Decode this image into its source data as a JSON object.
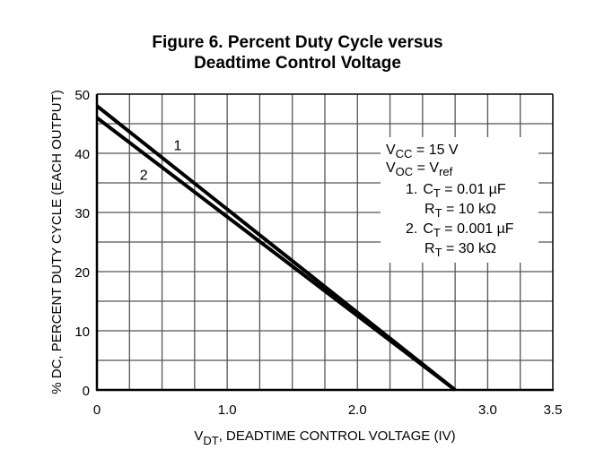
{
  "chart_data": {
    "type": "line",
    "title": [
      "Figure 6. Percent Duty Cycle versus",
      "Deadtime Control Voltage"
    ],
    "xlabel": {
      "main": "V",
      "sub": "DT",
      "rest": ", DEADTIME CONTROL VOLTAGE (IV)"
    },
    "ylabel": "% DC, PERCENT DUTY CYCLE (EACH OUTPUT)",
    "xlim": [
      0,
      3.5
    ],
    "ylim": [
      0,
      50
    ],
    "x_ticks": [
      {
        "v": 0,
        "label": "0"
      },
      {
        "v": 1.0,
        "label": "1.0"
      },
      {
        "v": 2.0,
        "label": "2.0"
      },
      {
        "v": 3.0,
        "label": "3.0"
      },
      {
        "v": 3.5,
        "label": "3.5"
      }
    ],
    "y_ticks": [
      {
        "v": 0,
        "label": "0"
      },
      {
        "v": 10,
        "label": "10"
      },
      {
        "v": 20,
        "label": "20"
      },
      {
        "v": 30,
        "label": "30"
      },
      {
        "v": 40,
        "label": "40"
      },
      {
        "v": 50,
        "label": "50"
      }
    ],
    "x_grid_step": 0.25,
    "y_grid_step": 5,
    "grid": true,
    "series": [
      {
        "name": "1",
        "label": "1",
        "x": [
          0,
          2.75
        ],
        "y": [
          48,
          0
        ],
        "label_at": [
          0.62,
          40.5
        ]
      },
      {
        "name": "2",
        "label": "2",
        "x": [
          0,
          2.75
        ],
        "y": [
          46,
          0
        ],
        "label_at": [
          0.36,
          35.5
        ]
      }
    ],
    "legend_position": "top-right",
    "annotation": {
      "vcc": {
        "main": "V",
        "sub": "CC",
        "rest": " = 15 V"
      },
      "voc": {
        "main": "V",
        "sub": "OC",
        "eq": " = V",
        "sub2": "ref"
      },
      "c1": {
        "num": "1.",
        "main": "C",
        "sub": "T",
        "rest": " = 0.01 µF"
      },
      "r1": {
        "main": "R",
        "sub": "T",
        "rest": " = 10 kΩ"
      },
      "c2": {
        "num": "2.",
        "main": "C",
        "sub": "T",
        "rest": " = 0.001 µF"
      },
      "r2": {
        "main": "R",
        "sub": "T",
        "rest": " = 30 kΩ"
      }
    }
  }
}
